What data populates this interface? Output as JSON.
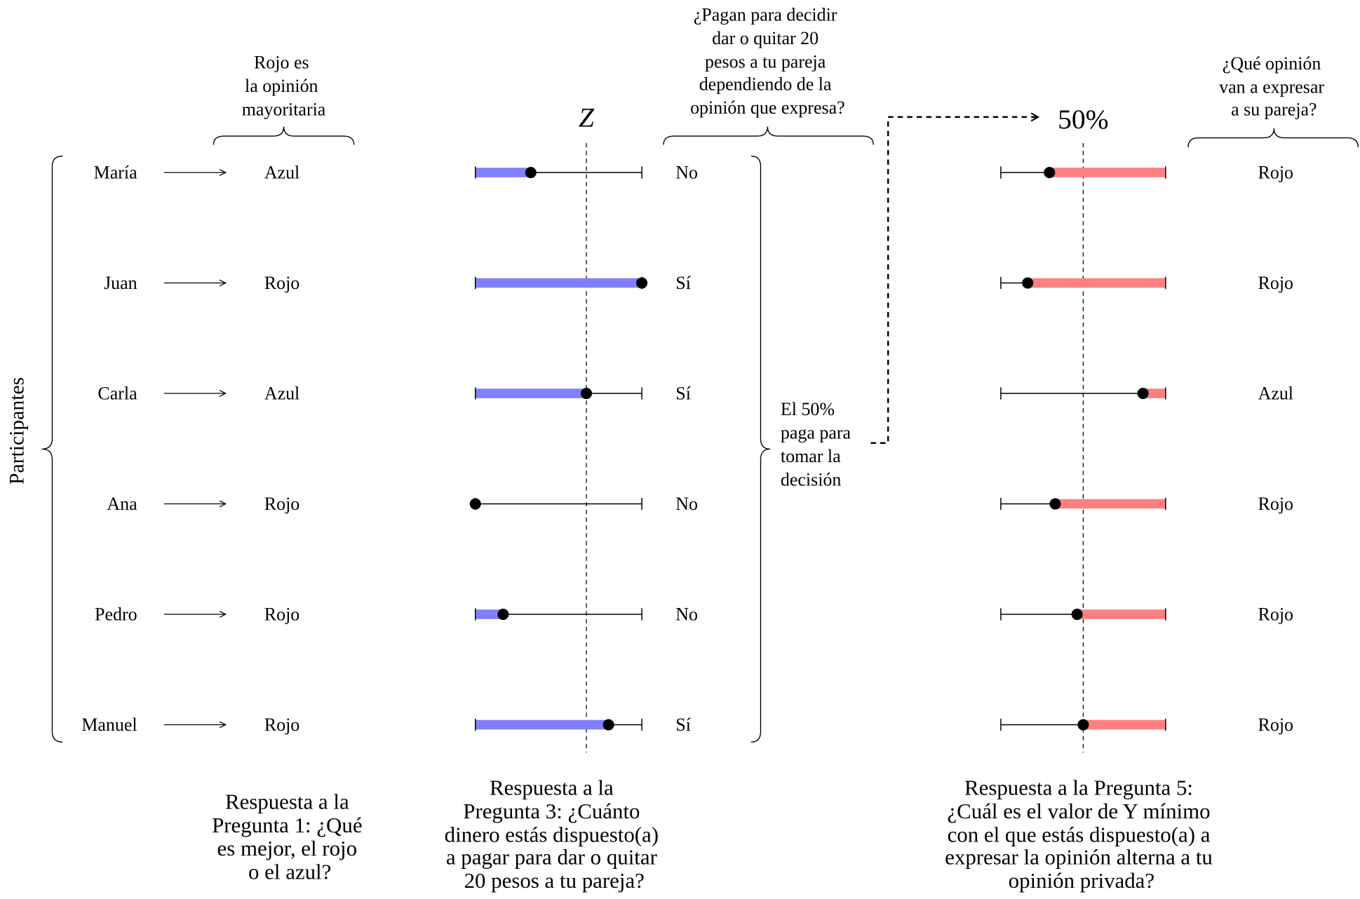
{
  "colors": {
    "willingness_bar": "#8080ff",
    "price_bar": "#ff8080",
    "ink": "#000000"
  },
  "participants_label": "Participantes",
  "majority_note": [
    "Rojo es",
    "la opinión",
    "mayoritaria"
  ],
  "q3_threshold": {
    "label": "Z",
    "level": 0.667
  },
  "pay_question": [
    "¿Pagan para decidir",
    "dar o quitar 20",
    "pesos a tu pareja",
    "dependiendo de la",
    "opinión que expresa?"
  ],
  "pay_summary": [
    "El 50%",
    "paga para",
    "tomar la",
    "decisión"
  ],
  "q5_threshold": {
    "label": "50%",
    "level": 0.5
  },
  "expressed_question": [
    "¿Qué opinión",
    "van a expresar",
    "a su pareja?"
  ],
  "participants": [
    {
      "name": "María",
      "q1": "Azul",
      "q3_level": 0.333,
      "pays": "No",
      "q5_level": 0.295,
      "expressed": "Rojo"
    },
    {
      "name": "Juan",
      "q1": "Rojo",
      "q3_level": 1.0,
      "pays": "Sí",
      "q5_level": 0.163,
      "expressed": "Rojo"
    },
    {
      "name": "Carla",
      "q1": "Azul",
      "q3_level": 0.667,
      "pays": "Sí",
      "q5_level": 0.863,
      "expressed": "Azul"
    },
    {
      "name": "Ana",
      "q1": "Rojo",
      "q3_level": 0.0,
      "pays": "No",
      "q5_level": 0.33,
      "expressed": "Rojo"
    },
    {
      "name": "Pedro",
      "q1": "Rojo",
      "q3_level": 0.167,
      "pays": "No",
      "q5_level": 0.463,
      "expressed": "Rojo"
    },
    {
      "name": "Manuel",
      "q1": "Rojo",
      "q3_level": 0.8,
      "pays": "Sí",
      "q5_level": 0.5,
      "expressed": "Rojo"
    }
  ],
  "captions": {
    "q1": [
      "Respuesta a la",
      "Pregunta 1: ¿Qué",
      "es mejor, el rojo",
      "o el azul?"
    ],
    "q3": [
      "Respuesta a la",
      "Pregunta 3: ¿Cuánto",
      "dinero estás dispuesto(a)",
      "a pagar para dar o quitar",
      "20 pesos a tu pareja?"
    ],
    "q5": [
      "Respuesta a la Pregunta 5:",
      "¿Cuál es el valor de Y mínimo",
      "con el que estás dispuesto(a) a",
      "expresar la opinión alterna a tu",
      "opinión privada?"
    ]
  }
}
